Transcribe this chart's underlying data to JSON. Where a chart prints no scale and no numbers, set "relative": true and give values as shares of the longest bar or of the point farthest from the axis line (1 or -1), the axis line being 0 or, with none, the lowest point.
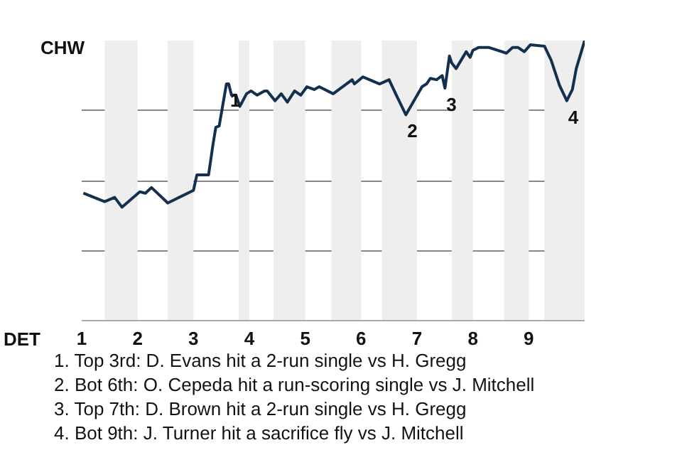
{
  "chart_data": {
    "type": "line",
    "relative": true,
    "x": [
      1.03,
      1.41,
      1.59,
      1.72,
      2.04,
      2.14,
      2.25,
      2.54,
      3.0,
      3.06,
      3.27,
      3.35,
      3.4,
      3.46,
      3.59,
      3.63,
      3.68,
      3.76,
      3.83,
      3.95,
      4.03,
      4.14,
      4.27,
      4.32,
      4.46,
      4.57,
      4.68,
      4.81,
      4.92,
      5.03,
      5.16,
      5.25,
      5.5,
      5.84,
      5.88,
      6.03,
      6.33,
      6.5,
      6.63,
      6.8,
      6.93,
      7.09,
      7.17,
      7.24,
      7.35,
      7.45,
      7.5,
      7.58,
      7.62,
      7.7,
      7.82,
      7.88,
      7.95,
      8.0,
      8.1,
      8.29,
      8.6,
      8.71,
      8.81,
      8.92,
      9.03,
      9.28,
      9.4,
      9.55,
      9.68,
      9.78,
      9.85,
      10
    ],
    "series": [
      {
        "color": "#14304f",
        "values": [
          0.455,
          0.425,
          0.44,
          0.405,
          0.46,
          0.455,
          0.475,
          0.42,
          0.465,
          0.52,
          0.52,
          0.63,
          0.69,
          0.695,
          0.845,
          0.845,
          0.805,
          0.805,
          0.765,
          0.81,
          0.82,
          0.805,
          0.82,
          0.82,
          0.785,
          0.81,
          0.78,
          0.82,
          0.805,
          0.835,
          0.825,
          0.835,
          0.81,
          0.86,
          0.845,
          0.87,
          0.845,
          0.86,
          0.805,
          0.735,
          0.78,
          0.835,
          0.845,
          0.865,
          0.86,
          0.875,
          0.83,
          0.945,
          0.92,
          0.9,
          0.94,
          0.96,
          0.94,
          0.965,
          0.975,
          0.975,
          0.955,
          0.975,
          0.975,
          0.96,
          0.985,
          0.98,
          0.93,
          0.84,
          0.785,
          0.825,
          0.9,
          1.0
        ]
      }
    ],
    "xlim": [
      1,
      10
    ],
    "xticks": [
      1,
      2,
      3,
      4,
      5,
      6,
      7,
      8,
      9
    ],
    "grid": "y",
    "line_style": "solid",
    "marker": "none",
    "bands": [
      {
        "axis": "x",
        "from": 1.41,
        "to": 2,
        "color": "#eeeeee"
      },
      {
        "axis": "x",
        "from": 2.54,
        "to": 3,
        "color": "#eeeeee"
      },
      {
        "axis": "x",
        "from": 3.81,
        "to": 4,
        "color": "#eeeeee"
      },
      {
        "axis": "x",
        "from": 4.43,
        "to": 5,
        "color": "#eeeeee"
      },
      {
        "axis": "x",
        "from": 5.47,
        "to": 6,
        "color": "#eeeeee"
      },
      {
        "axis": "x",
        "from": 6.37,
        "to": 7,
        "color": "#eeeeee"
      },
      {
        "axis": "x",
        "from": 7.62,
        "to": 8,
        "color": "#eeeeee"
      },
      {
        "axis": "x",
        "from": 8.56,
        "to": 9,
        "color": "#eeeeee"
      },
      {
        "axis": "x",
        "from": 9.28,
        "to": 10,
        "color": "#eeeeee"
      }
    ],
    "annotations": [
      "CHW",
      "DET",
      {
        "text": "1",
        "x": 3.63,
        "y": 0.845
      },
      {
        "text": "2",
        "x": 6.8,
        "y": 0.735
      },
      {
        "text": "3",
        "x": 7.5,
        "y": 0.83
      },
      {
        "text": "4",
        "x": 9.68,
        "y": 0.785
      },
      "1. Top 3rd: D. Evans hit a 2-run single vs H. Gregg",
      "2. Bot 6th: O. Cepeda hit a run-scoring single vs J. Mitchell",
      "3. Top 7th: D. Brown hit a 2-run single vs H. Gregg",
      "4. Bot 9th: J. Turner hit a sacrifice fly vs J. Mitchell"
    ]
  }
}
